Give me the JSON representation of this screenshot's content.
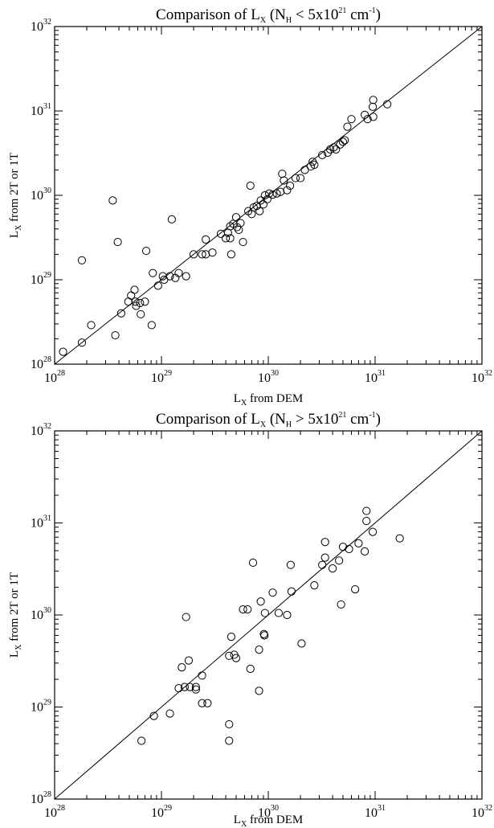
{
  "chart_data": [
    {
      "type": "scatter",
      "title": {
        "prefix": "Comparison of L",
        "prefix_sub": "X",
        "middle": " (N",
        "middle_sub": "H",
        "relation": " < 5x10",
        "exp": "21",
        "unit": " cm",
        "unit_exp": "-1",
        "suffix": ")"
      },
      "xlabel": {
        "main": "L",
        "sub": "X",
        "rest": " from DEM"
      },
      "ylabel": {
        "main": "L",
        "sub": "X",
        "rest": " from 2T or 1T"
      },
      "xscale": "log",
      "yscale": "log",
      "xlim": [
        1e+28,
        1e+32
      ],
      "ylim": [
        1e+28,
        1e+32
      ],
      "ticks": [
        {
          "base": "10",
          "exp": "28"
        },
        {
          "base": "10",
          "exp": "29"
        },
        {
          "base": "10",
          "exp": "30"
        },
        {
          "base": "10",
          "exp": "31"
        },
        {
          "base": "10",
          "exp": "32"
        }
      ],
      "reference_line": "y = x",
      "grid": false,
      "points": [
        {
          "x": 1.2e+28,
          "y": 1.4e+28
        },
        {
          "x": 1.8e+28,
          "y": 1.8e+28
        },
        {
          "x": 1.8e+28,
          "y": 1.7e+29
        },
        {
          "x": 2.2e+28,
          "y": 2.9e+28
        },
        {
          "x": 3.5e+28,
          "y": 8.7e+29
        },
        {
          "x": 3.7e+28,
          "y": 2.2e+28
        },
        {
          "x": 3.9e+28,
          "y": 2.8e+29
        },
        {
          "x": 4.2e+28,
          "y": 4e+28
        },
        {
          "x": 4.9e+28,
          "y": 5.5e+28
        },
        {
          "x": 5.2e+28,
          "y": 6.5e+28
        },
        {
          "x": 5.6e+28,
          "y": 7.6e+28
        },
        {
          "x": 5.7e+28,
          "y": 5.5e+28
        },
        {
          "x": 5.8e+28,
          "y": 4.9e+28
        },
        {
          "x": 6.3e+28,
          "y": 5.3e+28
        },
        {
          "x": 6.4e+28,
          "y": 3.9e+28
        },
        {
          "x": 7e+28,
          "y": 5.5e+28
        },
        {
          "x": 7.2e+28,
          "y": 2.2e+29
        },
        {
          "x": 8.1e+28,
          "y": 2.9e+28
        },
        {
          "x": 8.3e+28,
          "y": 1.2e+29
        },
        {
          "x": 9.3e+28,
          "y": 8.5e+28
        },
        {
          "x": 1.03e+29,
          "y": 1.1e+29
        },
        {
          "x": 1.06e+29,
          "y": 1e+29
        },
        {
          "x": 1.2e+29,
          "y": 1.1e+29
        },
        {
          "x": 1.25e+29,
          "y": 5.2e+29
        },
        {
          "x": 1.35e+29,
          "y": 1.05e+29
        },
        {
          "x": 1.45e+29,
          "y": 1.2e+29
        },
        {
          "x": 1.7e+29,
          "y": 1.1e+29
        },
        {
          "x": 2e+29,
          "y": 2e+29
        },
        {
          "x": 2.4e+29,
          "y": 2e+29
        },
        {
          "x": 2.6e+29,
          "y": 3e+29
        },
        {
          "x": 2.6e+29,
          "y": 2e+29
        },
        {
          "x": 3e+29,
          "y": 2.1e+29
        },
        {
          "x": 3.6e+29,
          "y": 3.5e+29
        },
        {
          "x": 4e+29,
          "y": 3.1e+29
        },
        {
          "x": 4.2e+29,
          "y": 3.6e+29
        },
        {
          "x": 4.4e+29,
          "y": 4.3e+29
        },
        {
          "x": 4.4e+29,
          "y": 3.1e+29
        },
        {
          "x": 4.5e+29,
          "y": 2e+29
        },
        {
          "x": 4.7e+29,
          "y": 4.6e+29
        },
        {
          "x": 5e+29,
          "y": 5.5e+29
        },
        {
          "x": 5.1e+29,
          "y": 4.2e+29
        },
        {
          "x": 5.3e+29,
          "y": 3.9e+29
        },
        {
          "x": 5.5e+29,
          "y": 4.7e+29
        },
        {
          "x": 5.8e+29,
          "y": 2.8e+29
        },
        {
          "x": 6.5e+29,
          "y": 6.5e+29
        },
        {
          "x": 6.8e+29,
          "y": 1.3e+30
        },
        {
          "x": 7e+29,
          "y": 6e+29
        },
        {
          "x": 7.3e+29,
          "y": 7.2e+29
        },
        {
          "x": 7.8e+29,
          "y": 7.5e+29
        },
        {
          "x": 8.3e+29,
          "y": 6.5e+29
        },
        {
          "x": 8.5e+29,
          "y": 8.7e+29
        },
        {
          "x": 9e+29,
          "y": 7.8e+29
        },
        {
          "x": 9.3e+29,
          "y": 1e+30
        },
        {
          "x": 9.8e+29,
          "y": 9e+29
        },
        {
          "x": 1.02e+30,
          "y": 1.05e+30
        },
        {
          "x": 1.1e+30,
          "y": 1.02e+30
        },
        {
          "x": 1.2e+30,
          "y": 1.05e+30
        },
        {
          "x": 1.3e+30,
          "y": 1.1e+30
        },
        {
          "x": 1.35e+30,
          "y": 1.8e+30
        },
        {
          "x": 1.4e+30,
          "y": 1.5e+30
        },
        {
          "x": 1.5e+30,
          "y": 1.15e+30
        },
        {
          "x": 1.6e+30,
          "y": 1.3e+30
        },
        {
          "x": 1.8e+30,
          "y": 1.6e+30
        },
        {
          "x": 2e+30,
          "y": 1.6e+30
        },
        {
          "x": 2.2e+30,
          "y": 2e+30
        },
        {
          "x": 2.5e+30,
          "y": 2.2e+30
        },
        {
          "x": 2.6e+30,
          "y": 2.5e+30
        },
        {
          "x": 2.7e+30,
          "y": 2.3e+30
        },
        {
          "x": 3.2e+30,
          "y": 3e+30
        },
        {
          "x": 3.6e+30,
          "y": 3.2e+30
        },
        {
          "x": 3.8e+30,
          "y": 3.5e+30
        },
        {
          "x": 4.1e+30,
          "y": 3.7e+30
        },
        {
          "x": 4.3e+30,
          "y": 3.5e+30
        },
        {
          "x": 4.7e+30,
          "y": 4e+30
        },
        {
          "x": 5e+30,
          "y": 4.3e+30
        },
        {
          "x": 5.2e+30,
          "y": 4.5e+30
        },
        {
          "x": 5.5e+30,
          "y": 6.5e+30
        },
        {
          "x": 6e+30,
          "y": 8e+30
        },
        {
          "x": 8e+30,
          "y": 9e+30
        },
        {
          "x": 8.5e+30,
          "y": 8e+30
        },
        {
          "x": 9.5e+30,
          "y": 1.12e+31
        },
        {
          "x": 9.6e+30,
          "y": 1.35e+31
        },
        {
          "x": 9.6e+30,
          "y": 8.5e+30
        },
        {
          "x": 1.3e+31,
          "y": 1.2e+31
        }
      ]
    },
    {
      "type": "scatter",
      "title": {
        "prefix": "Comparison of L",
        "prefix_sub": "X",
        "middle": " (N",
        "middle_sub": "H",
        "relation": " > 5x10",
        "exp": "21",
        "unit": " cm",
        "unit_exp": "-1",
        "suffix": ")"
      },
      "xlabel": {
        "main": "L",
        "sub": "X",
        "rest": " from DEM"
      },
      "ylabel": {
        "main": "L",
        "sub": "X",
        "rest": " from 2T or 1T"
      },
      "xscale": "log",
      "yscale": "log",
      "xlim": [
        1e+28,
        1e+32
      ],
      "ylim": [
        1e+28,
        1e+32
      ],
      "ticks": [
        {
          "base": "10",
          "exp": "28"
        },
        {
          "base": "10",
          "exp": "29"
        },
        {
          "base": "10",
          "exp": "30"
        },
        {
          "base": "10",
          "exp": "31"
        },
        {
          "base": "10",
          "exp": "32"
        }
      ],
      "reference_line": "y = x",
      "grid": false,
      "points": [
        {
          "x": 6.5e+28,
          "y": 4.3e+28
        },
        {
          "x": 8.5e+28,
          "y": 8e+28
        },
        {
          "x": 1.2e+29,
          "y": 8.5e+28
        },
        {
          "x": 1.45e+29,
          "y": 1.6e+29
        },
        {
          "x": 1.55e+29,
          "y": 2.7e+29
        },
        {
          "x": 1.65e+29,
          "y": 1.65e+29
        },
        {
          "x": 1.7e+29,
          "y": 9.5e+29
        },
        {
          "x": 1.8e+29,
          "y": 3.2e+29
        },
        {
          "x": 1.85e+29,
          "y": 1.65e+29
        },
        {
          "x": 2.1e+29,
          "y": 1.55e+29
        },
        {
          "x": 2.1e+29,
          "y": 1.65e+29
        },
        {
          "x": 2.4e+29,
          "y": 2.2e+29
        },
        {
          "x": 2.4e+29,
          "y": 1.1e+29
        },
        {
          "x": 2.7e+29,
          "y": 1.1e+29
        },
        {
          "x": 4.3e+29,
          "y": 6.5e+28
        },
        {
          "x": 4.3e+29,
          "y": 4.3e+28
        },
        {
          "x": 4.3e+29,
          "y": 3.6e+29
        },
        {
          "x": 4.5e+29,
          "y": 5.8e+29
        },
        {
          "x": 4.8e+29,
          "y": 3.7e+29
        },
        {
          "x": 5e+29,
          "y": 3.4e+29
        },
        {
          "x": 5.8e+29,
          "y": 1.15e+30
        },
        {
          "x": 6.4e+29,
          "y": 1.15e+30
        },
        {
          "x": 6.8e+29,
          "y": 2.6e+29
        },
        {
          "x": 7.2e+29,
          "y": 3.7e+30
        },
        {
          "x": 8.2e+29,
          "y": 1.5e+29
        },
        {
          "x": 8.2e+29,
          "y": 4.2e+29
        },
        {
          "x": 8.5e+29,
          "y": 1.4e+30
        },
        {
          "x": 9.1e+29,
          "y": 6.2e+29
        },
        {
          "x": 9.2e+29,
          "y": 6e+29
        },
        {
          "x": 9.3e+29,
          "y": 1.05e+30
        },
        {
          "x": 1.1e+30,
          "y": 1.75e+30
        },
        {
          "x": 1.25e+30,
          "y": 1.05e+30
        },
        {
          "x": 1.5e+30,
          "y": 1e+30
        },
        {
          "x": 1.62e+30,
          "y": 3.5e+30
        },
        {
          "x": 1.65e+30,
          "y": 1.8e+30
        },
        {
          "x": 2.05e+30,
          "y": 4.9e+29
        },
        {
          "x": 2.7e+30,
          "y": 2.1e+30
        },
        {
          "x": 3.2e+30,
          "y": 3.5e+30
        },
        {
          "x": 3.4e+30,
          "y": 6.2e+30
        },
        {
          "x": 3.4e+30,
          "y": 4.2e+30
        },
        {
          "x": 4e+30,
          "y": 3.2e+30
        },
        {
          "x": 4.6e+30,
          "y": 3.9e+30
        },
        {
          "x": 4.8e+30,
          "y": 1.3e+30
        },
        {
          "x": 5e+30,
          "y": 5.5e+30
        },
        {
          "x": 5.7e+30,
          "y": 5.2e+30
        },
        {
          "x": 6.5e+30,
          "y": 1.9e+30
        },
        {
          "x": 7e+30,
          "y": 6e+30
        },
        {
          "x": 8e+30,
          "y": 4.9e+30
        },
        {
          "x": 8.3e+30,
          "y": 1.35e+31
        },
        {
          "x": 8.3e+30,
          "y": 1.05e+31
        },
        {
          "x": 9.5e+30,
          "y": 8e+30
        },
        {
          "x": 1.7e+31,
          "y": 6.8e+30
        }
      ]
    }
  ]
}
